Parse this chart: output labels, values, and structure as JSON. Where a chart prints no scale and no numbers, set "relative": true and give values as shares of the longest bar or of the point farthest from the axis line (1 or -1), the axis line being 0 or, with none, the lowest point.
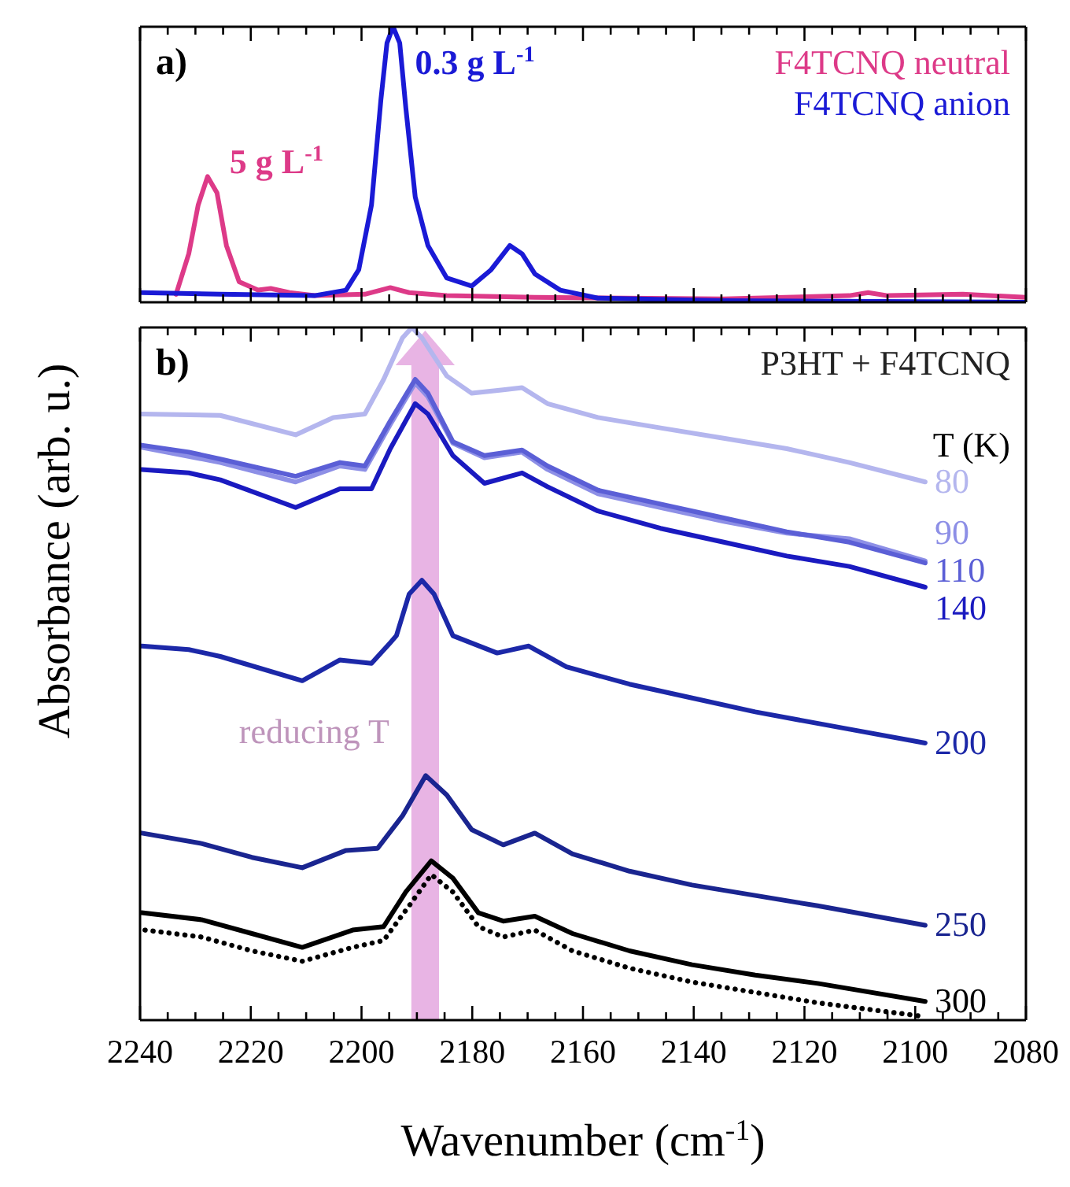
{
  "chart_data": [
    {
      "type": "line",
      "relative": true,
      "xlim": [
        2240,
        2080
      ],
      "xticks": [
        2240,
        {
          "value": 2235,
          "label": null
        },
        {
          "value": 2230,
          "label": null
        },
        {
          "value": 2225,
          "label": null
        },
        2220,
        {
          "value": 2215,
          "label": null
        },
        {
          "value": 2210,
          "label": null
        },
        {
          "value": 2205,
          "label": null
        },
        2200,
        {
          "value": 2195,
          "label": null
        },
        {
          "value": 2190,
          "label": null
        },
        {
          "value": 2185,
          "label": null
        },
        2180,
        {
          "value": 2175,
          "label": null
        },
        {
          "value": 2170,
          "label": null
        },
        {
          "value": 2165,
          "label": null
        },
        2160,
        {
          "value": 2155,
          "label": null
        },
        {
          "value": 2150,
          "label": null
        },
        {
          "value": 2145,
          "label": null
        },
        2140,
        {
          "value": 2135,
          "label": null
        },
        {
          "value": 2130,
          "label": null
        },
        {
          "value": 2125,
          "label": null
        },
        2120,
        {
          "value": 2115,
          "label": null
        },
        {
          "value": 2110,
          "label": null
        },
        {
          "value": 2105,
          "label": null
        },
        2100,
        {
          "value": 2095,
          "label": null
        },
        {
          "value": 2090,
          "label": null
        },
        {
          "value": 2085,
          "label": null
        },
        2080
      ],
      "tick_labels": false,
      "legend": "top right",
      "marker": "none",
      "line_style": "solid",
      "annotations": [
        "a)",
        "5 g L$^{-1}$",
        "0.3 g L$^{-1}$"
      ],
      "series": [
        {
          "name": "F4TCNQ neutral",
          "color": "#dd3a88",
          "x": [
            2233.5,
            2231.2,
            2229.5,
            2227.8,
            2226.1,
            2224.4,
            2222.1,
            2218.7,
            2216.4,
            2213,
            2208.5,
            2199.4,
            2194.8,
            2191.4,
            2184.6,
            2168.7,
            2134.6,
            2111.9,
            2108.5,
            2105,
            2091.4,
            2080
          ],
          "values": [
            0.029,
            0.176,
            0.353,
            0.456,
            0.397,
            0.206,
            0.074,
            0.044,
            0.05,
            0.035,
            0.024,
            0.029,
            0.053,
            0.035,
            0.024,
            0.018,
            0.012,
            0.024,
            0.035,
            0.024,
            0.029,
            0.018
          ]
        },
        {
          "name": "F4TCNQ anion",
          "color": "#1a1ad6",
          "x": [
            2239.7,
            2225.5,
            2208.5,
            2202.8,
            2200.5,
            2198.2,
            2196.5,
            2195.4,
            2194.3,
            2193.1,
            2192,
            2190.3,
            2188,
            2184.6,
            2180.1,
            2176.6,
            2173.2,
            2171,
            2168.7,
            2164.1,
            2157.3,
            2134.6,
            2080
          ],
          "values": [
            0.035,
            0.029,
            0.024,
            0.044,
            0.118,
            0.353,
            0.735,
            0.941,
            1.0,
            0.941,
            0.706,
            0.382,
            0.206,
            0.088,
            0.059,
            0.118,
            0.206,
            0.176,
            0.103,
            0.044,
            0.015,
            0.006,
            0.0
          ]
        }
      ]
    },
    {
      "type": "line",
      "relative": true,
      "xlim": [
        2240,
        2080
      ],
      "xticks": [
        2240,
        {
          "value": 2235,
          "label": null
        },
        {
          "value": 2230,
          "label": null
        },
        {
          "value": 2225,
          "label": null
        },
        2220,
        {
          "value": 2215,
          "label": null
        },
        {
          "value": 2210,
          "label": null
        },
        {
          "value": 2205,
          "label": null
        },
        2200,
        {
          "value": 2195,
          "label": null
        },
        {
          "value": 2190,
          "label": null
        },
        {
          "value": 2185,
          "label": null
        },
        2180,
        {
          "value": 2175,
          "label": null
        },
        {
          "value": 2170,
          "label": null
        },
        {
          "value": 2165,
          "label": null
        },
        2160,
        {
          "value": 2155,
          "label": null
        },
        {
          "value": 2150,
          "label": null
        },
        {
          "value": 2145,
          "label": null
        },
        2140,
        {
          "value": 2135,
          "label": null
        },
        {
          "value": 2130,
          "label": null
        },
        {
          "value": 2125,
          "label": null
        },
        2120,
        {
          "value": 2115,
          "label": null
        },
        {
          "value": 2110,
          "label": null
        },
        {
          "value": 2105,
          "label": null
        },
        2100,
        {
          "value": 2095,
          "label": null
        },
        {
          "value": 2090,
          "label": null
        },
        {
          "value": 2085,
          "label": null
        },
        2080
      ],
      "tick_labels": "x",
      "xlabel": "Wavenumber (cm$^{-1}$)",
      "ylabel": "Absorbance (arb. u.)",
      "legend": "right",
      "legend_title": "T (K)",
      "marker": "none",
      "line_style": "solid",
      "annotations": [
        "b)",
        "P3HT + F4TCNQ"
      ],
      "bands": [
        {
          "axis": "x",
          "from": 2191,
          "to": 2186,
          "label": "reducing T",
          "color": "#e8b4e4"
        }
      ],
      "series": [
        {
          "name": "80",
          "color": "#b4b6ee",
          "x": [
            2239.7,
            2225.5,
            2211.9,
            2205.1,
            2199.4,
            2196,
            2192.6,
            2190.9,
            2189.1,
            2184.6,
            2180.1,
            2174.4,
            2171,
            2166.4,
            2157.3,
            2146,
            2134.6,
            2123.2,
            2111.9,
            2098.2
          ],
          "values": [
            0.875,
            0.873,
            0.845,
            0.87,
            0.875,
            0.925,
            0.985,
            1.0,
            0.985,
            0.93,
            0.905,
            0.91,
            0.913,
            0.89,
            0.87,
            0.855,
            0.84,
            0.825,
            0.805,
            0.777
          ]
        },
        {
          "name": "90",
          "color": "#8d8fe6",
          "x": [
            2239.7,
            2225.5,
            2211.9,
            2203.9,
            2199.4,
            2194.8,
            2190.3,
            2188,
            2183.5,
            2177.8,
            2171,
            2166.4,
            2157.3,
            2146,
            2134.6,
            2123.2,
            2111.9,
            2098.2
          ],
          "values": [
            0.827,
            0.805,
            0.777,
            0.8,
            0.795,
            0.86,
            0.92,
            0.9,
            0.833,
            0.812,
            0.82,
            0.795,
            0.76,
            0.74,
            0.72,
            0.703,
            0.695,
            0.663
          ]
        },
        {
          "name": "110",
          "color": "#5b5fd6",
          "x": [
            2239.7,
            2231.2,
            2225.5,
            2211.9,
            2203.9,
            2199.4,
            2194.8,
            2190.3,
            2188,
            2183.5,
            2177.8,
            2171,
            2166.4,
            2157.3,
            2146,
            2134.6,
            2123.2,
            2111.9,
            2098.2
          ],
          "values": [
            0.83,
            0.82,
            0.81,
            0.785,
            0.805,
            0.8,
            0.865,
            0.925,
            0.905,
            0.835,
            0.815,
            0.823,
            0.8,
            0.765,
            0.745,
            0.725,
            0.705,
            0.69,
            0.66
          ]
        },
        {
          "name": "140",
          "color": "#1a1ac0",
          "x": [
            2239.7,
            2231.2,
            2225.5,
            2211.9,
            2203.9,
            2198.2,
            2194.8,
            2190.3,
            2188,
            2183.5,
            2177.8,
            2171,
            2166.4,
            2157.3,
            2146,
            2134.6,
            2123.2,
            2111.9,
            2098.2
          ],
          "values": [
            0.795,
            0.79,
            0.78,
            0.74,
            0.767,
            0.767,
            0.825,
            0.89,
            0.875,
            0.815,
            0.775,
            0.79,
            0.77,
            0.735,
            0.71,
            0.69,
            0.67,
            0.655,
            0.625
          ]
        },
        {
          "name": "200",
          "color": "#1c28a8",
          "x": [
            2239.7,
            2231.2,
            2225.5,
            2210.7,
            2203.9,
            2198.2,
            2194.8,
            2193.7,
            2191.4,
            2189.1,
            2186.9,
            2183.5,
            2175.5,
            2169.8,
            2163,
            2151.6,
            2140.3,
            2128.9,
            2111.9,
            2098.2
          ],
          "values": [
            0.54,
            0.535,
            0.525,
            0.49,
            0.52,
            0.515,
            0.545,
            0.555,
            0.615,
            0.635,
            0.615,
            0.555,
            0.53,
            0.54,
            0.51,
            0.485,
            0.465,
            0.445,
            0.42,
            0.4
          ]
        },
        {
          "name": "250",
          "color": "#1a2590",
          "x": [
            2239.7,
            2228.9,
            2219.8,
            2210.7,
            2202.8,
            2197.1,
            2192.6,
            2188.4,
            2184.6,
            2180.1,
            2174.4,
            2168.7,
            2161.9,
            2151.6,
            2140.3,
            2128.9,
            2117.6,
            2098.2
          ],
          "values": [
            0.27,
            0.255,
            0.235,
            0.22,
            0.245,
            0.248,
            0.295,
            0.353,
            0.325,
            0.275,
            0.253,
            0.27,
            0.24,
            0.215,
            0.195,
            0.18,
            0.165,
            0.137
          ]
        },
        {
          "name": "300",
          "color": "#000000",
          "x": [
            2239.7,
            2228.9,
            2219.8,
            2210.7,
            2201.6,
            2196,
            2192,
            2187.4,
            2183.5,
            2178.9,
            2174.4,
            2168.7,
            2161.9,
            2151.6,
            2140.3,
            2128.9,
            2117.6,
            2098.2
          ],
          "values": [
            0.155,
            0.145,
            0.125,
            0.105,
            0.13,
            0.135,
            0.185,
            0.23,
            0.205,
            0.155,
            0.143,
            0.15,
            0.125,
            0.1,
            0.08,
            0.065,
            0.053,
            0.027
          ]
        },
        {
          "color": "#000000",
          "line_style": "dotted",
          "x": [
            2239.1,
            2228.9,
            2219.8,
            2210.7,
            2201.6,
            2196,
            2191.4,
            2187.4,
            2183.5,
            2178.9,
            2174.4,
            2168.7,
            2161.9,
            2151.6,
            2140.3,
            2128.9,
            2117.6,
            2098.2
          ],
          "values": [
            0.13,
            0.12,
            0.1,
            0.085,
            0.105,
            0.115,
            0.165,
            0.21,
            0.185,
            0.135,
            0.12,
            0.13,
            0.1,
            0.075,
            0.055,
            0.04,
            0.025,
            0.005
          ]
        }
      ]
    }
  ]
}
